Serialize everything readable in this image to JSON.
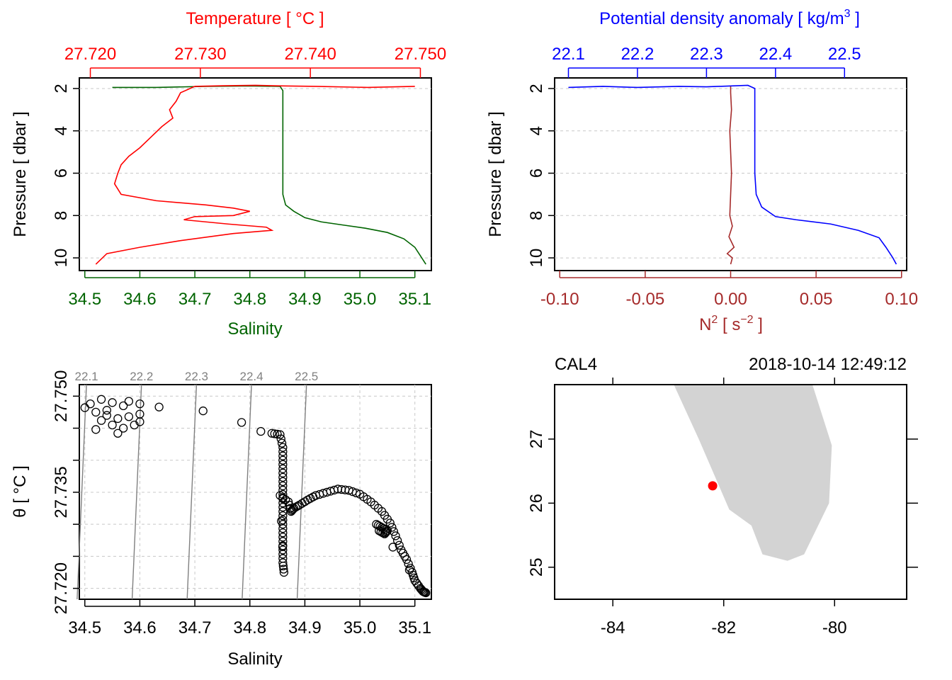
{
  "colors": {
    "temperature": "#ff0000",
    "salinity": "#006400",
    "density": "#0000ff",
    "n2": "#a52a2a",
    "land": "#d3d3d3",
    "station": "#ff0000",
    "isopycnal": "#808080",
    "grid": "#c8c8c8"
  },
  "chart_data": [
    {
      "id": "profile_ts",
      "type": "line",
      "title": "Temperature [ °C ]",
      "top_axis": {
        "label": "Temperature [ °C ]",
        "range": [
          27.719,
          27.751
        ],
        "ticks": [
          "27.720",
          "27.730",
          "27.740",
          "27.750"
        ]
      },
      "bottom_axis": {
        "label": "Salinity",
        "range": [
          34.49,
          35.13
        ],
        "ticks": [
          "34.5",
          "34.6",
          "34.7",
          "34.8",
          "34.9",
          "35.0",
          "35.1"
        ]
      },
      "left_axis": {
        "label": "Pressure [ dbar ]",
        "range": [
          10.6,
          1.5
        ],
        "ticks": [
          "2",
          "4",
          "6",
          "8",
          "10"
        ]
      },
      "series": [
        {
          "name": "Temperature",
          "color_key": "temperature",
          "points": [
            [
              27.7495,
              1.9
            ],
            [
              27.7452,
              1.95
            ],
            [
              27.7405,
              1.9
            ],
            [
              27.7375,
              1.88
            ],
            [
              27.735,
              1.85
            ],
            [
              27.732,
              1.87
            ],
            [
              27.7295,
              1.9
            ],
            [
              27.7282,
              2.2
            ],
            [
              27.7278,
              2.6
            ],
            [
              27.7272,
              3.0
            ],
            [
              27.7275,
              3.4
            ],
            [
              27.7265,
              3.8
            ],
            [
              27.7255,
              4.3
            ],
            [
              27.7245,
              4.8
            ],
            [
              27.7235,
              5.2
            ],
            [
              27.7228,
              5.6
            ],
            [
              27.7225,
              6.0
            ],
            [
              27.7222,
              6.5
            ],
            [
              27.7228,
              7.0
            ],
            [
              27.726,
              7.3
            ],
            [
              27.7305,
              7.5
            ],
            [
              27.733,
              7.65
            ],
            [
              27.7345,
              7.8
            ],
            [
              27.733,
              8.0
            ],
            [
              27.7295,
              8.05
            ],
            [
              27.7285,
              8.2
            ],
            [
              27.7325,
              8.4
            ],
            [
              27.736,
              8.55
            ],
            [
              27.7365,
              8.7
            ],
            [
              27.733,
              8.85
            ],
            [
              27.728,
              9.2
            ],
            [
              27.7245,
              9.5
            ],
            [
              27.7215,
              9.8
            ],
            [
              27.7205,
              10.3
            ]
          ]
        },
        {
          "name": "Salinity",
          "color_key": "salinity",
          "points": [
            [
              34.55,
              1.95
            ],
            [
              34.63,
              1.95
            ],
            [
              34.72,
              1.9
            ],
            [
              34.8,
              1.88
            ],
            [
              34.855,
              1.9
            ],
            [
              34.86,
              2.1
            ],
            [
              34.86,
              3.0
            ],
            [
              34.86,
              4.0
            ],
            [
              34.86,
              5.0
            ],
            [
              34.86,
              6.0
            ],
            [
              34.86,
              7.0
            ],
            [
              34.865,
              7.5
            ],
            [
              34.88,
              7.8
            ],
            [
              34.9,
              8.1
            ],
            [
              34.93,
              8.3
            ],
            [
              34.97,
              8.45
            ],
            [
              35.01,
              8.6
            ],
            [
              35.05,
              8.8
            ],
            [
              35.08,
              9.1
            ],
            [
              35.1,
              9.5
            ],
            [
              35.11,
              9.9
            ],
            [
              35.12,
              10.3
            ]
          ]
        }
      ]
    },
    {
      "id": "profile_density",
      "type": "line",
      "title": "Potential density anomaly [ kg/m3 ]",
      "top_axis": {
        "label": "Potential density anomaly [ kg/m3 ]",
        "range": [
          22.08,
          22.59
        ],
        "ticks": [
          "22.1",
          "22.2",
          "22.3",
          "22.4",
          "22.5"
        ]
      },
      "bottom_axis": {
        "label": "N2 [ s−2 ]",
        "range": [
          -0.103,
          0.103
        ],
        "ticks": [
          "-0.10",
          "-0.05",
          "0.00",
          "0.05",
          "0.10"
        ]
      },
      "left_axis": {
        "label": "Pressure [ dbar ]",
        "range": [
          10.6,
          1.5
        ],
        "ticks": [
          "2",
          "4",
          "6",
          "8",
          "10"
        ]
      },
      "series": [
        {
          "name": "Potential density anomaly",
          "color_key": "density",
          "points": [
            [
              22.1,
              1.95
            ],
            [
              22.15,
              1.9
            ],
            [
              22.2,
              1.95
            ],
            [
              22.26,
              1.9
            ],
            [
              22.3,
              1.92
            ],
            [
              22.36,
              1.85
            ],
            [
              22.37,
              2.0
            ],
            [
              22.37,
              3.0
            ],
            [
              22.37,
              4.0
            ],
            [
              22.37,
              5.0
            ],
            [
              22.37,
              6.0
            ],
            [
              22.372,
              7.0
            ],
            [
              22.38,
              7.6
            ],
            [
              22.4,
              8.05
            ],
            [
              22.43,
              8.2
            ],
            [
              22.48,
              8.4
            ],
            [
              22.52,
              8.7
            ],
            [
              22.55,
              9.05
            ],
            [
              22.56,
              9.5
            ],
            [
              22.57,
              10.0
            ],
            [
              22.575,
              10.3
            ]
          ]
        },
        {
          "name": "N2",
          "color_key": "n2",
          "points": [
            [
              0.0,
              1.9
            ],
            [
              0.0,
              2.2
            ],
            [
              0.0005,
              3.0
            ],
            [
              -0.0005,
              4.0
            ],
            [
              0.0,
              5.0
            ],
            [
              0.0005,
              6.0
            ],
            [
              0.0,
              7.0
            ],
            [
              -0.0005,
              8.0
            ],
            [
              0.001,
              8.5
            ],
            [
              -0.001,
              9.0
            ],
            [
              0.002,
              9.5
            ],
            [
              -0.002,
              9.8
            ],
            [
              0.001,
              10.0
            ],
            [
              0.0,
              10.3
            ]
          ]
        }
      ]
    },
    {
      "id": "ts_diagram",
      "type": "scatter",
      "xlabel": "Salinity",
      "ylabel": "θ [ °C ]",
      "x_range": [
        34.49,
        35.13
      ],
      "y_range": [
        27.7183,
        27.7518
      ],
      "x_ticks": [
        "34.5",
        "34.6",
        "34.7",
        "34.8",
        "34.9",
        "35.0",
        "35.1"
      ],
      "y_ticks": [
        "27.720",
        "27.725",
        "27.730",
        "27.735",
        "27.740",
        "27.745",
        "27.750"
      ],
      "y_tick_labels_shown": [
        "27.720",
        "27.735",
        "27.750"
      ],
      "isopycnal_labels": [
        "22.1",
        "22.2",
        "22.3",
        "22.4",
        "22.5"
      ],
      "points": [
        [
          34.51,
          27.7488
        ],
        [
          34.53,
          27.7495
        ],
        [
          34.55,
          27.749
        ],
        [
          34.57,
          27.7485
        ],
        [
          34.6,
          27.7488
        ],
        [
          34.52,
          27.7475
        ],
        [
          34.54,
          27.747
        ],
        [
          34.56,
          27.7465
        ],
        [
          34.58,
          27.7468
        ],
        [
          34.6,
          27.7472
        ],
        [
          34.55,
          27.7455
        ],
        [
          34.57,
          27.745
        ],
        [
          34.59,
          27.7455
        ],
        [
          34.6,
          27.746
        ],
        [
          34.53,
          27.7462
        ],
        [
          34.5,
          27.7482
        ],
        [
          34.52,
          27.7448
        ],
        [
          34.54,
          27.7478
        ],
        [
          34.58,
          27.7492
        ],
        [
          34.56,
          27.7442
        ],
        [
          34.635,
          27.7483
        ],
        [
          34.715,
          27.7477
        ],
        [
          34.785,
          27.7459
        ],
        [
          34.82,
          27.7445
        ],
        [
          34.84,
          27.7442
        ],
        [
          34.855,
          27.744
        ],
        [
          34.86,
          27.742
        ],
        [
          34.86,
          27.74
        ],
        [
          34.86,
          27.738
        ],
        [
          34.86,
          27.736
        ],
        [
          34.86,
          27.734
        ],
        [
          34.86,
          27.732
        ],
        [
          34.86,
          27.73
        ],
        [
          34.86,
          27.728
        ],
        [
          34.86,
          27.726
        ],
        [
          34.86,
          27.724
        ],
        [
          34.862,
          27.7225
        ],
        [
          34.855,
          27.7345
        ],
        [
          34.87,
          27.7335
        ],
        [
          34.875,
          27.732
        ],
        [
          34.88,
          27.7325
        ],
        [
          34.89,
          27.733
        ],
        [
          34.905,
          27.7338
        ],
        [
          34.92,
          27.7345
        ],
        [
          34.94,
          27.735
        ],
        [
          34.96,
          27.7355
        ],
        [
          34.98,
          27.7353
        ],
        [
          35.0,
          27.7347
        ],
        [
          35.02,
          27.7335
        ],
        [
          35.04,
          27.732
        ],
        [
          35.055,
          27.7302
        ],
        [
          35.065,
          27.7282
        ],
        [
          35.075,
          27.726
        ],
        [
          35.085,
          27.7245
        ],
        [
          35.095,
          27.7225
        ],
        [
          35.1,
          27.7212
        ],
        [
          35.11,
          27.72
        ],
        [
          35.115,
          27.7195
        ],
        [
          35.12,
          27.7193
        ],
        [
          35.03,
          27.73
        ],
        [
          35.04,
          27.7295
        ],
        [
          35.05,
          27.729
        ],
        [
          35.045,
          27.7285
        ],
        [
          35.035,
          27.729
        ]
      ]
    },
    {
      "id": "station_map",
      "type": "map",
      "station_name": "CAL4",
      "datetime": "2018-10-14 12:49:12",
      "x_range": [
        -85.05,
        -78.7
      ],
      "y_range": [
        24.5,
        27.85
      ],
      "x_ticks": [
        "-84",
        "-82",
        "-80"
      ],
      "y_ticks": [
        "25",
        "26",
        "27"
      ],
      "station": {
        "lon": -82.2,
        "lat": 26.27
      },
      "land_polygon": [
        [
          -82.9,
          27.85
        ],
        [
          -82.45,
          27.0
        ],
        [
          -81.9,
          25.9
        ],
        [
          -81.5,
          25.65
        ],
        [
          -81.3,
          25.2
        ],
        [
          -80.85,
          25.1
        ],
        [
          -80.55,
          25.2
        ],
        [
          -80.1,
          26.0
        ],
        [
          -80.05,
          26.9
        ],
        [
          -80.4,
          27.85
        ]
      ]
    }
  ]
}
